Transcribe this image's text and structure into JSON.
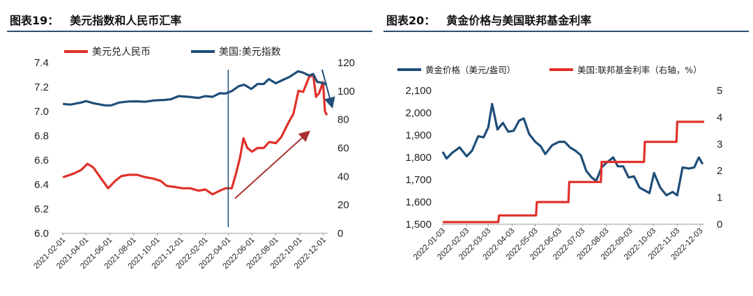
{
  "figures": [
    {
      "number": "图表19：",
      "title": "美元指数和人民币汇率"
    },
    {
      "number": "图表20：",
      "title": "黄金价格与美国联邦基金利率"
    }
  ],
  "chart_data": [
    {
      "type": "line",
      "title": "美元指数和人民币汇率",
      "x": [
        "2021-02-01",
        "2021-04-01",
        "2021-06-01",
        "2021-08-01",
        "2021-10-01",
        "2021-12-01",
        "2022-02-01",
        "2022-04-01",
        "2022-06-01",
        "2022-08-01",
        "2022-10-01",
        "2022-12-01"
      ],
      "y_left": {
        "ylim": [
          6.0,
          7.4
        ],
        "ticks": [
          "6.0",
          "6.2",
          "6.4",
          "6.6",
          "6.8",
          "7.0",
          "7.2",
          "7.4"
        ]
      },
      "y_right": {
        "ylim": [
          0,
          120
        ],
        "ticks": [
          "0",
          "20",
          "40",
          "60",
          "80",
          "100",
          "120"
        ]
      },
      "series": [
        {
          "name": "美元兑人民币",
          "axis": "left",
          "color": "#e0302a",
          "points": [
            [
              "2021-02-01",
              6.46
            ],
            [
              "2021-03-01",
              6.49
            ],
            [
              "2021-03-20",
              6.52
            ],
            [
              "2021-04-05",
              6.57
            ],
            [
              "2021-04-20",
              6.54
            ],
            [
              "2021-05-10",
              6.45
            ],
            [
              "2021-05-28",
              6.37
            ],
            [
              "2021-06-15",
              6.43
            ],
            [
              "2021-07-01",
              6.47
            ],
            [
              "2021-07-20",
              6.48
            ],
            [
              "2021-08-10",
              6.48
            ],
            [
              "2021-09-01",
              6.46
            ],
            [
              "2021-09-20",
              6.45
            ],
            [
              "2021-10-10",
              6.43
            ],
            [
              "2021-10-25",
              6.39
            ],
            [
              "2021-11-15",
              6.38
            ],
            [
              "2021-12-05",
              6.37
            ],
            [
              "2021-12-25",
              6.37
            ],
            [
              "2022-01-15",
              6.35
            ],
            [
              "2022-02-01",
              6.36
            ],
            [
              "2022-02-20",
              6.32
            ],
            [
              "2022-03-10",
              6.35
            ],
            [
              "2022-03-25",
              6.37
            ],
            [
              "2022-04-10",
              6.37
            ],
            [
              "2022-04-20",
              6.48
            ],
            [
              "2022-05-01",
              6.62
            ],
            [
              "2022-05-10",
              6.78
            ],
            [
              "2022-05-20",
              6.7
            ],
            [
              "2022-06-01",
              6.67
            ],
            [
              "2022-06-15",
              6.7
            ],
            [
              "2022-07-01",
              6.7
            ],
            [
              "2022-07-15",
              6.75
            ],
            [
              "2022-08-01",
              6.74
            ],
            [
              "2022-08-15",
              6.79
            ],
            [
              "2022-09-01",
              6.9
            ],
            [
              "2022-09-15",
              6.98
            ],
            [
              "2022-09-28",
              7.17
            ],
            [
              "2022-10-10",
              7.16
            ],
            [
              "2022-10-25",
              7.28
            ],
            [
              "2022-11-05",
              7.3
            ],
            [
              "2022-11-12",
              7.12
            ],
            [
              "2022-11-20",
              7.15
            ],
            [
              "2022-11-30",
              7.24
            ],
            [
              "2022-12-05",
              7.0
            ],
            [
              "2022-12-10",
              6.97
            ]
          ]
        },
        {
          "name": "美国:美元指数",
          "axis": "right",
          "color": "#1f4e79",
          "points": [
            [
              "2021-02-01",
              91
            ],
            [
              "2021-02-20",
              90.5
            ],
            [
              "2021-03-20",
              92
            ],
            [
              "2021-04-01",
              93
            ],
            [
              "2021-04-20",
              91.5
            ],
            [
              "2021-05-20",
              90
            ],
            [
              "2021-06-05",
              90
            ],
            [
              "2021-06-25",
              92
            ],
            [
              "2021-07-20",
              92.7
            ],
            [
              "2021-08-10",
              92.8
            ],
            [
              "2021-08-31",
              92.5
            ],
            [
              "2021-09-25",
              93.5
            ],
            [
              "2021-10-20",
              93.8
            ],
            [
              "2021-11-05",
              94.3
            ],
            [
              "2021-11-25",
              96.5
            ],
            [
              "2021-12-20",
              96
            ],
            [
              "2022-01-15",
              95.2
            ],
            [
              "2022-02-01",
              96.5
            ],
            [
              "2022-02-20",
              96
            ],
            [
              "2022-03-10",
              98.5
            ],
            [
              "2022-03-25",
              98.3
            ],
            [
              "2022-04-10",
              100
            ],
            [
              "2022-04-28",
              103.5
            ],
            [
              "2022-05-12",
              104.5
            ],
            [
              "2022-05-30",
              101.5
            ],
            [
              "2022-06-15",
              105
            ],
            [
              "2022-07-01",
              105
            ],
            [
              "2022-07-14",
              108.5
            ],
            [
              "2022-08-01",
              105.5
            ],
            [
              "2022-08-20",
              108
            ],
            [
              "2022-09-05",
              110
            ],
            [
              "2022-09-27",
              114
            ],
            [
              "2022-10-10",
              113
            ],
            [
              "2022-10-25",
              111
            ],
            [
              "2022-11-05",
              112
            ],
            [
              "2022-11-15",
              106.5
            ],
            [
              "2022-11-25",
              106
            ],
            [
              "2022-12-05",
              105
            ],
            [
              "2022-12-10",
              104.8
            ]
          ]
        }
      ],
      "annotations": [
        "vertical line at 2022-04",
        "arrow upward (美元兑人民币 trend)",
        "arrow downward (美元指数 end)"
      ]
    },
    {
      "type": "line",
      "title": "黄金价格与美国联邦基金利率",
      "x": [
        "2022-01-03",
        "2022-02-03",
        "2022-03-03",
        "2022-04-03",
        "2022-05-03",
        "2022-06-03",
        "2022-07-03",
        "2022-08-03",
        "2022-09-03",
        "2022-10-03",
        "2022-11-03",
        "2022-12-03"
      ],
      "y_left": {
        "ylim": [
          1500,
          2100
        ],
        "ticks": [
          "1,500",
          "1,600",
          "1,700",
          "1,800",
          "1,900",
          "2,000",
          "2,100"
        ]
      },
      "y_right": {
        "ylim": [
          0,
          5
        ],
        "ticks": [
          "0",
          "1",
          "2",
          "3",
          "4",
          "5"
        ]
      },
      "series": [
        {
          "name": "黄金价格（美元/盎司）",
          "axis": "left",
          "color": "#1f4e79",
          "points": [
            [
              "2022-01-03",
              1825
            ],
            [
              "2022-01-08",
              1795
            ],
            [
              "2022-01-15",
              1820
            ],
            [
              "2022-01-25",
              1845
            ],
            [
              "2022-02-03",
              1805
            ],
            [
              "2022-02-10",
              1830
            ],
            [
              "2022-02-18",
              1895
            ],
            [
              "2022-02-25",
              1890
            ],
            [
              "2022-03-03",
              1935
            ],
            [
              "2022-03-08",
              2040
            ],
            [
              "2022-03-15",
              1925
            ],
            [
              "2022-03-22",
              1955
            ],
            [
              "2022-03-29",
              1915
            ],
            [
              "2022-04-05",
              1920
            ],
            [
              "2022-04-12",
              1965
            ],
            [
              "2022-04-18",
              1975
            ],
            [
              "2022-04-25",
              1905
            ],
            [
              "2022-05-03",
              1870
            ],
            [
              "2022-05-10",
              1850
            ],
            [
              "2022-05-16",
              1815
            ],
            [
              "2022-05-25",
              1855
            ],
            [
              "2022-06-03",
              1870
            ],
            [
              "2022-06-10",
              1870
            ],
            [
              "2022-06-17",
              1845
            ],
            [
              "2022-06-24",
              1830
            ],
            [
              "2022-07-01",
              1810
            ],
            [
              "2022-07-08",
              1740
            ],
            [
              "2022-07-15",
              1710
            ],
            [
              "2022-07-21",
              1695
            ],
            [
              "2022-07-28",
              1755
            ],
            [
              "2022-08-03",
              1775
            ],
            [
              "2022-08-12",
              1800
            ],
            [
              "2022-08-18",
              1760
            ],
            [
              "2022-08-25",
              1760
            ],
            [
              "2022-09-01",
              1710
            ],
            [
              "2022-09-08",
              1715
            ],
            [
              "2022-09-15",
              1665
            ],
            [
              "2022-09-28",
              1640
            ],
            [
              "2022-10-04",
              1730
            ],
            [
              "2022-10-12",
              1665
            ],
            [
              "2022-10-20",
              1630
            ],
            [
              "2022-10-28",
              1645
            ],
            [
              "2022-11-03",
              1630
            ],
            [
              "2022-11-10",
              1755
            ],
            [
              "2022-11-18",
              1750
            ],
            [
              "2022-11-25",
              1755
            ],
            [
              "2022-12-01",
              1800
            ],
            [
              "2022-12-06",
              1770
            ]
          ]
        },
        {
          "name": "美国:联邦基金利率（右轴，%）",
          "axis": "right",
          "color": "#e0302a",
          "points": [
            [
              "2022-01-03",
              0.08
            ],
            [
              "2022-03-16",
              0.08
            ],
            [
              "2022-03-17",
              0.33
            ],
            [
              "2022-05-04",
              0.33
            ],
            [
              "2022-05-05",
              0.83
            ],
            [
              "2022-06-15",
              0.83
            ],
            [
              "2022-06-16",
              1.58
            ],
            [
              "2022-07-27",
              1.58
            ],
            [
              "2022-07-28",
              2.33
            ],
            [
              "2022-09-21",
              2.33
            ],
            [
              "2022-09-22",
              3.08
            ],
            [
              "2022-11-02",
              3.08
            ],
            [
              "2022-11-03",
              3.83
            ],
            [
              "2022-12-08",
              3.83
            ]
          ]
        }
      ]
    }
  ]
}
